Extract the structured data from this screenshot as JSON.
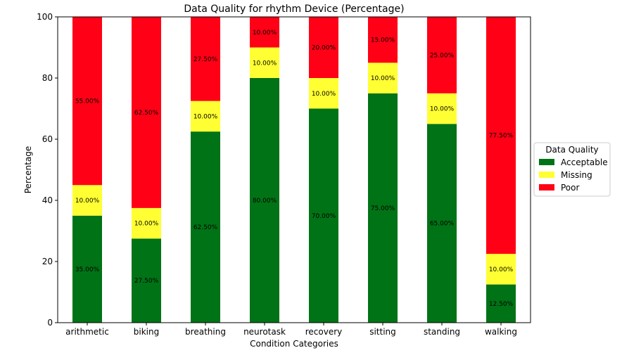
{
  "chart_data": {
    "type": "bar",
    "stacked": true,
    "title": "Data Quality for rhythm Device (Percentage)",
    "xlabel": "Condition Categories",
    "ylabel": "Percentage",
    "ylim": [
      0,
      100
    ],
    "yticks": [
      0,
      20,
      40,
      60,
      80,
      100
    ],
    "grid": false,
    "categories": [
      "arithmetic",
      "biking",
      "breathing",
      "neurotask",
      "recovery",
      "sitting",
      "standing",
      "walking"
    ],
    "series": [
      {
        "name": "Acceptable",
        "color": "#007316",
        "values": [
          35.0,
          27.5,
          62.5,
          80.0,
          70.0,
          75.0,
          65.0,
          12.5
        ],
        "labels": [
          "35.00%",
          "27.50%",
          "62.50%",
          "80.00%",
          "70.00%",
          "75.00%",
          "65.00%",
          "12.50%"
        ]
      },
      {
        "name": "Missing",
        "color": "#ffff33",
        "values": [
          10.0,
          10.0,
          10.0,
          10.0,
          10.0,
          10.0,
          10.0,
          10.0
        ],
        "labels": [
          "10.00%",
          "10.00%",
          "10.00%",
          "10.00%",
          "10.00%",
          "10.00%",
          "10.00%",
          "10.00%"
        ]
      },
      {
        "name": "Poor",
        "color": "#ff0016",
        "values": [
          55.0,
          62.5,
          27.5,
          10.0,
          20.0,
          15.0,
          25.0,
          77.5
        ],
        "labels": [
          "55.00%",
          "62.50%",
          "27.50%",
          "10.00%",
          "20.00%",
          "15.00%",
          "25.00%",
          "77.50%"
        ]
      }
    ],
    "legend": {
      "title": "Data Quality",
      "placement": "outside-right"
    }
  }
}
